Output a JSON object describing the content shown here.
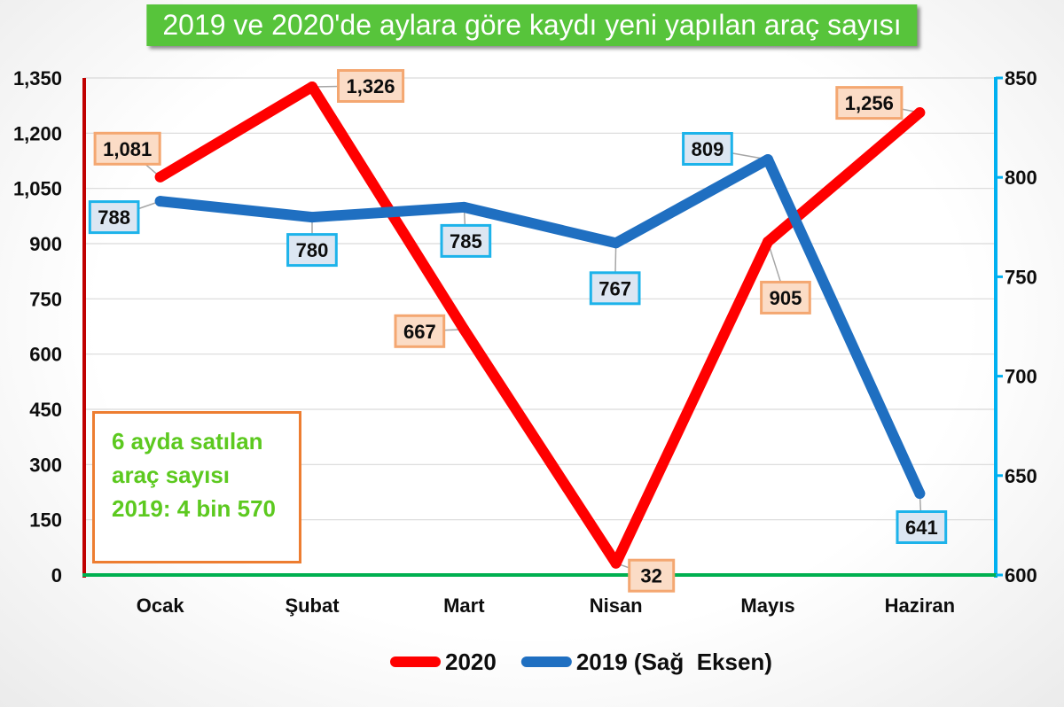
{
  "chart_data": {
    "type": "line",
    "title": "2019 ve 2020'de aylara göre kaydı yeni yapılan araç sayısı",
    "categories": [
      "Ocak",
      "Şubat",
      "Mart",
      "Nisan",
      "Mayıs",
      "Haziran"
    ],
    "series": [
      {
        "name": "2020",
        "axis": "left",
        "values": [
          1081,
          1326,
          667,
          32,
          905,
          1256
        ],
        "data_labels": [
          "1,081",
          "1,326",
          "667",
          "32",
          "905",
          "1,256"
        ],
        "color": "#ff0000",
        "label_fill": "#fbdcc6",
        "label_border": "#f4a771"
      },
      {
        "name": "2019 (Sağ  Eksen)",
        "axis": "right",
        "values": [
          788,
          780,
          785,
          767,
          809,
          641
        ],
        "data_labels": [
          "788",
          "780",
          "785",
          "767",
          "809",
          "641"
        ],
        "color": "#1f6fc1",
        "label_fill": "#dce6f2",
        "label_border": "#1db3ea"
      }
    ],
    "y_left": {
      "min": 0,
      "max": 1350,
      "step": 150,
      "tick_labels": [
        "0",
        "150",
        "300",
        "450",
        "600",
        "750",
        "900",
        "1,050",
        "1,200",
        "1,350"
      ],
      "axis_color": "#c00000"
    },
    "y_right": {
      "min": 600,
      "max": 850,
      "step": 50,
      "tick_labels": [
        "600",
        "650",
        "700",
        "750",
        "800",
        "850"
      ],
      "axis_color": "#00b0f0"
    },
    "x_axis_color": "#00b050",
    "grid": true,
    "legend": "bottom"
  },
  "annotation": {
    "lines": [
      "6 ayda satılan",
      "araç sayısı",
      "2019: 4 bin 570"
    ]
  },
  "colors": {
    "title_background": "#57c43b",
    "title_text": "#ffffff",
    "annotation_border": "#ed7d31",
    "annotation_text": "#5cc91f",
    "gridline": "#d9d9d9",
    "leader_line": "#a6a6a6"
  }
}
